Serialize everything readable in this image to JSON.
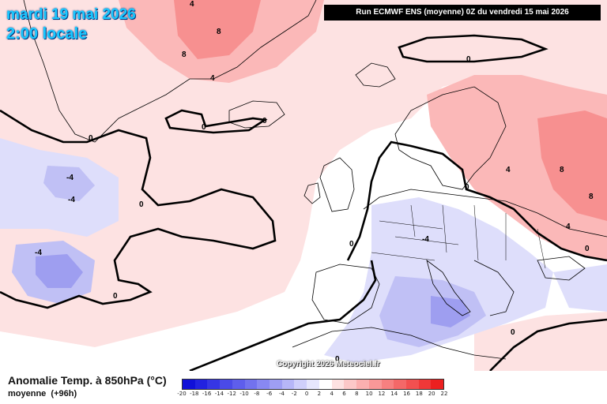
{
  "header": {
    "date": "mardi 19 mai 2026",
    "time": "2:00 locale",
    "run": "Run ECMWF ENS (moyenne) 0Z du vendredi 15 mai 2026"
  },
  "footer": {
    "variable": "Anomalie Temp. à 850hPa (°C)",
    "subtitle": "moyenne",
    "lead": "(+96h)",
    "copyright": "Copyright 2026 Meteociel.fr"
  },
  "legend": {
    "ticks": [
      "-20",
      "-18",
      "-16",
      "-14",
      "-12",
      "-10",
      "-8",
      "-6",
      "-4",
      "-2",
      "0",
      "2",
      "4",
      "6",
      "8",
      "10",
      "12",
      "14",
      "16",
      "18",
      "20",
      "22"
    ],
    "colors": [
      "#1010d8",
      "#2222e0",
      "#3636e4",
      "#4a4ae8",
      "#5e5eec",
      "#7272ee",
      "#8888f2",
      "#9e9ef4",
      "#b6b6f8",
      "#cfcffb",
      "#e6e6fd",
      "#ffffff",
      "#fde2e2",
      "#fcc8c8",
      "#fbb0b0",
      "#f99898",
      "#f78080",
      "#f46868",
      "#f25050",
      "#ef3838",
      "#ec2020"
    ]
  },
  "map": {
    "contour_labels": [
      "-4",
      "-4",
      "-4",
      "-4",
      "0",
      "0",
      "0",
      "0",
      "0",
      "0",
      "0",
      "0",
      "0",
      "0",
      "0",
      "4",
      "4",
      "4",
      "4",
      "8",
      "8",
      "8",
      "8"
    ],
    "colors": {
      "warm_light": "#fde2e2",
      "warm_mid": "#fbb8b8",
      "warm_strong": "#f79090",
      "cool_light": "#dedefb",
      "cool_mid": "#c0c0f5",
      "cool_strong": "#9e9ef0",
      "contour": "#000000",
      "coast": "#000000"
    }
  }
}
